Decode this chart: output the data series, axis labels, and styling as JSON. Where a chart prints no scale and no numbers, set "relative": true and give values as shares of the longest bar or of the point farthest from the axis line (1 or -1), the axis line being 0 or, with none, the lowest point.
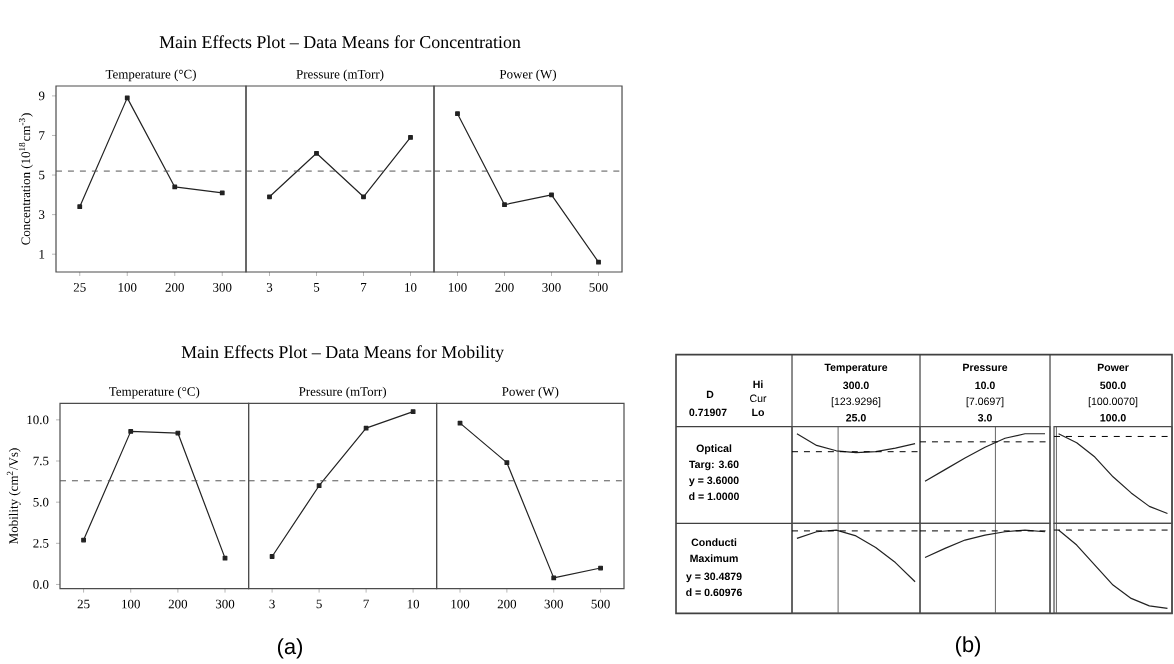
{
  "chart_data": [
    {
      "type": "line",
      "subtitle": "Temperature (°C)",
      "ylabel": "Concentration (10$^{18}$cm$^{-3}$)",
      "categories": [
        "25",
        "100",
        "200",
        "300"
      ],
      "values": [
        3.4,
        8.9,
        4.4,
        4.1
      ],
      "color": "#222222",
      "marker": "square",
      "ylim": [
        0.1,
        9.5
      ],
      "yticks": [
        1,
        3,
        5,
        7,
        9
      ],
      "ref_lines": [
        {
          "axis": "y",
          "value": 5.2,
          "line_style": "dashed",
          "color": "#555555"
        }
      ]
    },
    {
      "type": "line",
      "title": "Main Effects Plot – Data Means for Concentration",
      "subtitle": "Pressure (mTorr)",
      "categories": [
        "3",
        "5",
        "7",
        "10"
      ],
      "values": [
        3.9,
        6.1,
        3.9,
        6.9
      ],
      "color": "#222222",
      "marker": "square",
      "ylim": [
        0.1,
        9.5
      ],
      "tick_labels": "x",
      "ref_lines": [
        {
          "axis": "y",
          "value": 5.2,
          "line_style": "dashed",
          "color": "#555555"
        }
      ]
    },
    {
      "type": "line",
      "subtitle": "Power (W)",
      "categories": [
        "100",
        "200",
        "300",
        "500"
      ],
      "values": [
        8.1,
        3.5,
        4.0,
        0.6
      ],
      "color": "#222222",
      "marker": "square",
      "ylim": [
        0.1,
        9.5
      ],
      "tick_labels": "x",
      "ref_lines": [
        {
          "axis": "y",
          "value": 5.2,
          "line_style": "dashed",
          "color": "#555555"
        }
      ]
    },
    {
      "type": "line",
      "subtitle": "Temperature (°C)",
      "ylabel": "Mobility (cm$^{2}$/Vs)",
      "categories": [
        "25",
        "100",
        "200",
        "300"
      ],
      "values": [
        2.7,
        9.3,
        9.2,
        1.6
      ],
      "color": "#222222",
      "marker": "square",
      "ylim": [
        -0.25,
        11.0
      ],
      "yticks": [
        {
          "value": 0,
          "label": "0.0"
        },
        {
          "value": 2.5,
          "label": "2.5"
        },
        {
          "value": 5,
          "label": "5.0"
        },
        {
          "value": 7.5,
          "label": "7.5"
        },
        {
          "value": 10,
          "label": "10.0"
        }
      ],
      "ref_lines": [
        {
          "axis": "y",
          "value": 6.3,
          "line_style": "dashed",
          "color": "#555555"
        }
      ]
    },
    {
      "type": "line",
      "title": "Main Effects Plot – Data Means for Mobility",
      "subtitle": "Pressure (mTorr)",
      "categories": [
        "3",
        "5",
        "7",
        "10"
      ],
      "values": [
        1.7,
        6.0,
        9.5,
        10.5
      ],
      "color": "#222222",
      "marker": "square",
      "ylim": [
        -0.25,
        11.0
      ],
      "tick_labels": "x",
      "ref_lines": [
        {
          "axis": "y",
          "value": 6.3,
          "line_style": "dashed",
          "color": "#555555"
        }
      ],
      "annotations": [
        "(a)"
      ]
    },
    {
      "type": "line",
      "subtitle": "Power (W)",
      "categories": [
        "100",
        "200",
        "300",
        "500"
      ],
      "values": [
        9.8,
        7.4,
        0.4,
        1.0
      ],
      "color": "#222222",
      "marker": "square",
      "ylim": [
        -0.25,
        11.0
      ],
      "tick_labels": "x",
      "ref_lines": [
        {
          "axis": "y",
          "value": 6.3,
          "line_style": "dashed",
          "color": "#555555"
        }
      ]
    },
    {
      "type": "other",
      "annotations": [
        "D",
        "0.71907",
        "Hi",
        "Cur",
        "Lo",
        "Optical",
        "Targ: 3.60",
        "y = 3.6000",
        "d = 1.0000",
        "Conducti",
        "Maximum",
        "y = 30.4879",
        "d = 0.60976"
      ]
    },
    {
      "type": "line",
      "relative": true,
      "title": "Temperature",
      "annotations": [
        "300.0",
        "[123.9296]",
        "25.0"
      ],
      "categories": [
        null,
        null,
        null,
        null,
        null,
        null,
        null
      ],
      "values": [
        1,
        0.87,
        0.81,
        0.79,
        0.8,
        0.84,
        0.89
      ],
      "color": "#222222",
      "tick_labels": false,
      "ref_lines": [
        {
          "axis": "y",
          "value": 0.8,
          "line_style": "dashed",
          "color": "#000000"
        }
      ]
    },
    {
      "type": "line",
      "relative": true,
      "title": "Pressure",
      "annotations": [
        "10.0",
        "[7.0697]",
        "3.0",
        "(b)"
      ],
      "categories": [
        null,
        null,
        null,
        null,
        null,
        null,
        null
      ],
      "values": [
        0.47,
        0.6,
        0.73,
        0.85,
        0.95,
        1,
        1
      ],
      "color": "#222222",
      "tick_labels": false,
      "ref_lines": [
        {
          "axis": "y",
          "value": 0.91,
          "line_style": "dashed",
          "color": "#000000"
        }
      ]
    },
    {
      "type": "line",
      "relative": true,
      "title": "Power",
      "annotations": [
        "500.0",
        "[100.0070]",
        "100.0"
      ],
      "categories": [
        null,
        null,
        null,
        null,
        null,
        null,
        null
      ],
      "values": [
        1,
        0.9,
        0.74,
        0.52,
        0.34,
        0.19,
        0.11
      ],
      "color": "#222222",
      "tick_labels": false,
      "ref_lines": [
        {
          "axis": "y",
          "value": 0.97,
          "line_style": "dashed",
          "color": "#000000"
        }
      ]
    },
    {
      "type": "line",
      "relative": true,
      "categories": [
        null,
        null,
        null,
        null,
        null,
        null,
        null
      ],
      "values": [
        0.9,
        0.98,
        1,
        0.93,
        0.79,
        0.61,
        0.38
      ],
      "color": "#222222",
      "tick_labels": false,
      "ref_lines": [
        {
          "axis": "y",
          "value": 0.99,
          "line_style": "dashed",
          "color": "#000000"
        }
      ]
    },
    {
      "type": "line",
      "relative": true,
      "categories": [
        null,
        null,
        null,
        null,
        null,
        null,
        null
      ],
      "values": [
        0.67,
        0.78,
        0.88,
        0.94,
        0.98,
        1,
        0.98
      ],
      "color": "#222222",
      "tick_labels": false,
      "ref_lines": [
        {
          "axis": "y",
          "value": 0.99,
          "line_style": "dashed",
          "color": "#000000"
        }
      ]
    },
    {
      "type": "line",
      "relative": true,
      "categories": [
        null,
        null,
        null,
        null,
        null,
        null,
        null
      ],
      "values": [
        1,
        0.82,
        0.58,
        0.34,
        0.18,
        0.09,
        0.06
      ],
      "color": "#222222",
      "tick_labels": false,
      "ref_lines": [
        {
          "axis": "y",
          "value": 1,
          "line_style": "dashed",
          "color": "#000000"
        }
      ]
    }
  ]
}
